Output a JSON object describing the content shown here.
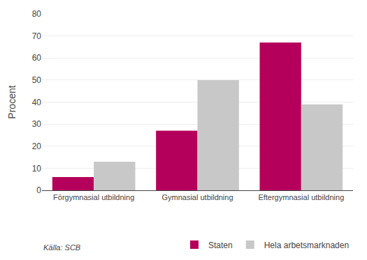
{
  "chart_data": {
    "type": "bar",
    "categories": [
      "Förgymnasial utbildning",
      "Gymnasial utbildning",
      "Eftergymnasial utbildning"
    ],
    "series": [
      {
        "name": "Staten",
        "color": "#b5005b",
        "values": [
          6,
          27,
          67
        ]
      },
      {
        "name": "Hela arbetsmarknaden",
        "color": "#c8c8c8",
        "values": [
          13,
          50,
          39
        ]
      }
    ],
    "ylabel": "Procent",
    "ylim": [
      0,
      80
    ],
    "yticks": [
      0,
      10,
      20,
      30,
      40,
      50,
      60,
      70,
      80
    ],
    "grid": true,
    "legend": "lower right",
    "annotations": [
      "Källa: SCB"
    ]
  }
}
